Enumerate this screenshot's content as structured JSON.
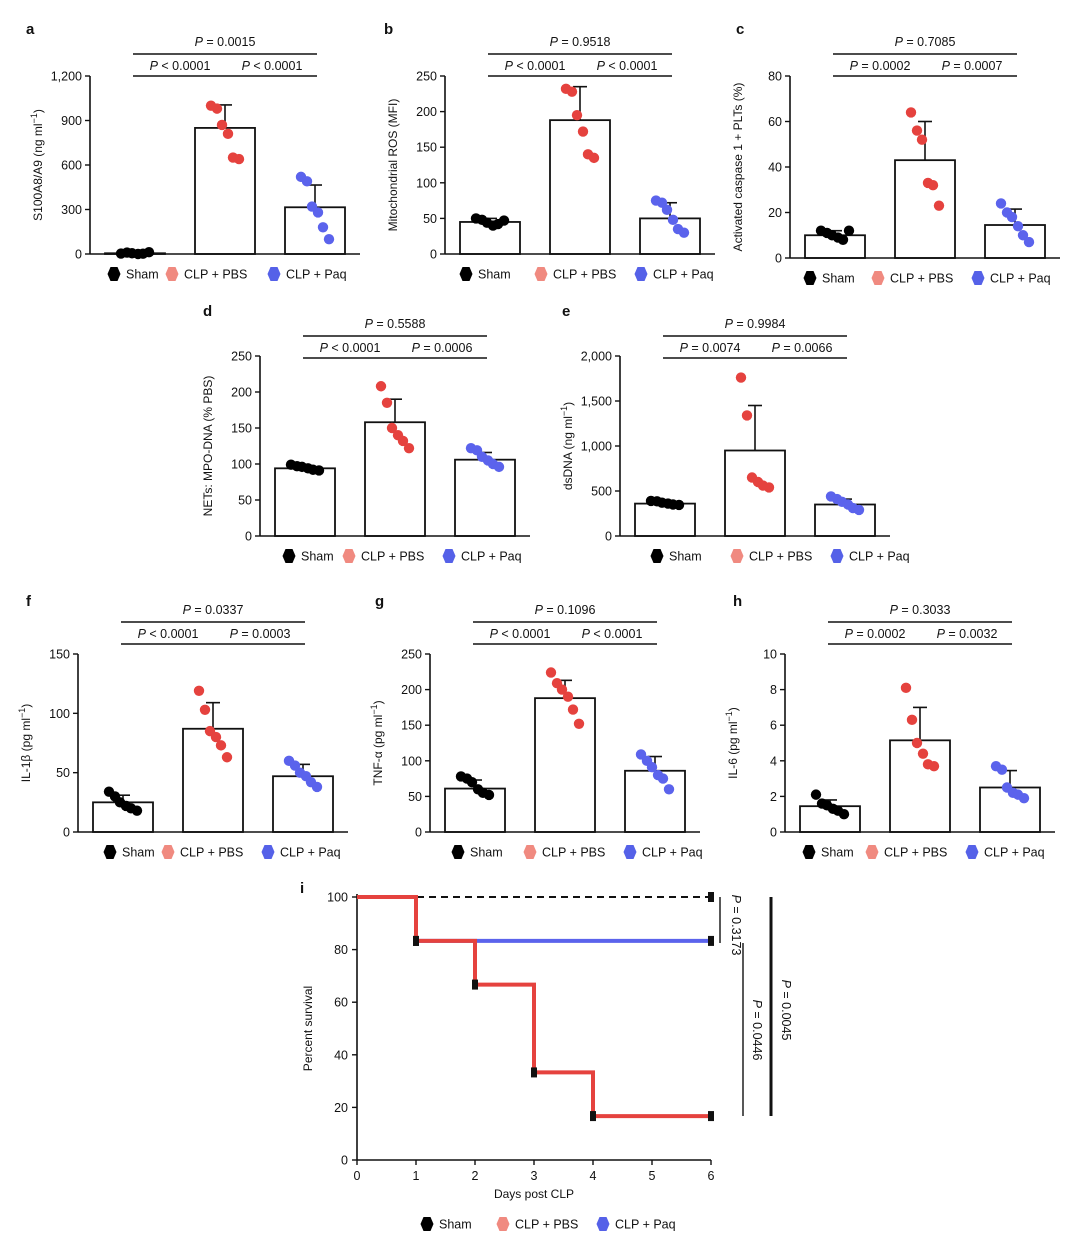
{
  "legend": {
    "labels": [
      "Sham",
      "CLP + PBS",
      "CLP + Paq"
    ],
    "marker_colors": [
      "#000000",
      "#f08a80",
      "#5561e8"
    ]
  },
  "colors": {
    "sham": "#000000",
    "pbs": "#e5423e",
    "paq": "#5b63ec",
    "line": "#111111"
  },
  "chart_data": [
    {
      "panel": "a",
      "type": "bar",
      "ylabel": "S100A8/A9 (ng ml⁻¹)",
      "categories": [
        "Sham",
        "CLP + PBS",
        "CLP + Paq"
      ],
      "ylim": [
        0,
        1200
      ],
      "yticks": [
        0,
        300,
        600,
        900,
        1200
      ],
      "ytick_labels": [
        "0",
        "300",
        "600",
        "900",
        "1,200"
      ],
      "means": [
        5,
        850,
        315
      ],
      "sd": [
        5,
        155,
        150
      ],
      "points": [
        [
          3,
          10,
          5,
          0,
          2,
          12
        ],
        [
          1000,
          980,
          870,
          810,
          650,
          640
        ],
        [
          520,
          490,
          320,
          280,
          180,
          100
        ]
      ],
      "pvalues": [
        {
          "from": 0,
          "to": 1,
          "p": "P < 0.0001"
        },
        {
          "from": 1,
          "to": 2,
          "p": "P < 0.0001"
        },
        {
          "from": 0,
          "to": 2,
          "p": "P = 0.0015"
        }
      ]
    },
    {
      "panel": "b",
      "type": "bar",
      "ylabel": "Mitochondrial ROS (MFI)",
      "categories": [
        "Sham",
        "CLP + PBS",
        "CLP + Paq"
      ],
      "ylim": [
        0,
        250
      ],
      "yticks": [
        0,
        50,
        100,
        150,
        200,
        250
      ],
      "ytick_labels": [
        "0",
        "50",
        "100",
        "150",
        "200",
        "250"
      ],
      "means": [
        45,
        188,
        50
      ],
      "sd": [
        5,
        47,
        22
      ],
      "points": [
        [
          50,
          48,
          44,
          40,
          42,
          47
        ],
        [
          232,
          228,
          195,
          172,
          140,
          135
        ],
        [
          75,
          72,
          62,
          48,
          35,
          30
        ]
      ],
      "pvalues": [
        {
          "from": 0,
          "to": 1,
          "p": "P < 0.0001"
        },
        {
          "from": 1,
          "to": 2,
          "p": "P < 0.0001"
        },
        {
          "from": 0,
          "to": 2,
          "p": "P = 0.9518"
        }
      ]
    },
    {
      "panel": "c",
      "type": "bar",
      "ylabel": "Activated caspase 1 + PLTs (%)",
      "categories": [
        "Sham",
        "CLP + PBS",
        "CLP + Paq"
      ],
      "ylim": [
        0,
        80
      ],
      "yticks": [
        0,
        20,
        40,
        60,
        80
      ],
      "ytick_labels": [
        "0",
        "20",
        "40",
        "60",
        "80"
      ],
      "means": [
        10,
        43,
        14.5
      ],
      "sd": [
        2,
        17,
        7
      ],
      "points": [
        [
          12,
          11,
          10,
          9,
          8,
          12
        ],
        [
          64,
          56,
          52,
          33,
          32,
          23
        ],
        [
          24,
          20,
          18,
          14,
          10,
          7
        ]
      ],
      "pvalues": [
        {
          "from": 0,
          "to": 1,
          "p": "P = 0.0002"
        },
        {
          "from": 1,
          "to": 2,
          "p": "P = 0.0007"
        },
        {
          "from": 0,
          "to": 2,
          "p": "P = 0.7085"
        }
      ]
    },
    {
      "panel": "d",
      "type": "bar",
      "ylabel": "NETs: MPO-DNA (% PBS)",
      "categories": [
        "Sham",
        "CLP + PBS",
        "CLP + Paq"
      ],
      "ylim": [
        0,
        250
      ],
      "yticks": [
        0,
        50,
        100,
        150,
        200,
        250
      ],
      "ytick_labels": [
        "0",
        "50",
        "100",
        "150",
        "200",
        "250"
      ],
      "means": [
        94,
        158,
        106
      ],
      "sd": [
        4,
        32,
        10
      ],
      "points": [
        [
          99,
          97,
          96,
          94,
          92,
          91
        ],
        [
          208,
          185,
          150,
          140,
          132,
          122
        ],
        [
          122,
          119,
          110,
          105,
          100,
          96
        ]
      ],
      "pvalues": [
        {
          "from": 0,
          "to": 1,
          "p": "P < 0.0001"
        },
        {
          "from": 1,
          "to": 2,
          "p": "P = 0.0006"
        },
        {
          "from": 0,
          "to": 2,
          "p": "P = 0.5588"
        }
      ]
    },
    {
      "panel": "e",
      "type": "bar",
      "ylabel": "dsDNA (ng ml⁻¹)",
      "categories": [
        "Sham",
        "CLP + PBS",
        "CLP + Paq"
      ],
      "ylim": [
        0,
        2000
      ],
      "yticks": [
        0,
        500,
        1000,
        1500,
        2000
      ],
      "ytick_labels": [
        "0",
        "500",
        "1,000",
        "1,500",
        "2,000"
      ],
      "means": [
        360,
        950,
        350
      ],
      "sd": [
        20,
        500,
        60
      ],
      "points": [
        [
          390,
          385,
          370,
          360,
          350,
          345
        ],
        [
          1760,
          1340,
          650,
          600,
          560,
          540
        ],
        [
          440,
          410,
          380,
          350,
          310,
          290
        ]
      ],
      "pvalues": [
        {
          "from": 0,
          "to": 1,
          "p": "P = 0.0074"
        },
        {
          "from": 1,
          "to": 2,
          "p": "P = 0.0066"
        },
        {
          "from": 0,
          "to": 2,
          "p": "P = 0.9984"
        }
      ]
    },
    {
      "panel": "f",
      "type": "bar",
      "ylabel": "IL-1β (pg ml⁻¹)",
      "categories": [
        "Sham",
        "CLP + PBS",
        "CLP + Paq"
      ],
      "ylim": [
        0,
        150
      ],
      "yticks": [
        0,
        50,
        100,
        150
      ],
      "ytick_labels": [
        "0",
        "50",
        "100",
        "150"
      ],
      "means": [
        25,
        87,
        47
      ],
      "sd": [
        6,
        22,
        10
      ],
      "points": [
        [
          34,
          30,
          25,
          22,
          20,
          18
        ],
        [
          119,
          103,
          85,
          80,
          73,
          63
        ],
        [
          60,
          56,
          50,
          47,
          42,
          38
        ]
      ],
      "pvalues": [
        {
          "from": 0,
          "to": 1,
          "p": "P < 0.0001"
        },
        {
          "from": 1,
          "to": 2,
          "p": "P = 0.0003"
        },
        {
          "from": 0,
          "to": 2,
          "p": "P = 0.0337"
        }
      ]
    },
    {
      "panel": "g",
      "type": "bar",
      "ylabel": "TNF-α (pg ml⁻¹)",
      "categories": [
        "Sham",
        "CLP + PBS",
        "CLP + Paq"
      ],
      "ylim": [
        0,
        250
      ],
      "yticks": [
        0,
        50,
        100,
        150,
        200,
        250
      ],
      "ytick_labels": [
        "0",
        "50",
        "100",
        "150",
        "200",
        "250"
      ],
      "means": [
        61,
        188,
        86
      ],
      "sd": [
        12,
        25,
        20
      ],
      "points": [
        [
          78,
          75,
          70,
          60,
          55,
          52
        ],
        [
          224,
          209,
          200,
          190,
          172,
          152
        ],
        [
          109,
          100,
          91,
          80,
          75,
          60
        ]
      ],
      "pvalues": [
        {
          "from": 0,
          "to": 1,
          "p": "P < 0.0001"
        },
        {
          "from": 1,
          "to": 2,
          "p": "P < 0.0001"
        },
        {
          "from": 0,
          "to": 2,
          "p": "P = 0.1096"
        }
      ]
    },
    {
      "panel": "h",
      "type": "bar",
      "ylabel": "IL-6 (pg ml⁻¹)",
      "categories": [
        "Sham",
        "CLP + PBS",
        "CLP + Paq"
      ],
      "ylim": [
        0,
        10
      ],
      "yticks": [
        0,
        2,
        4,
        6,
        8,
        10
      ],
      "ytick_labels": [
        "0",
        "2",
        "4",
        "6",
        "8",
        "10"
      ],
      "means": [
        1.45,
        5.15,
        2.5
      ],
      "sd": [
        0.35,
        1.85,
        0.95
      ],
      "points": [
        [
          2.1,
          1.6,
          1.5,
          1.3,
          1.2,
          1.0
        ],
        [
          8.1,
          6.3,
          5.0,
          4.4,
          3.8,
          3.7
        ],
        [
          3.7,
          3.5,
          2.5,
          2.2,
          2.1,
          1.9
        ]
      ],
      "pvalues": [
        {
          "from": 0,
          "to": 1,
          "p": "P = 0.0002"
        },
        {
          "from": 1,
          "to": 2,
          "p": "P = 0.0032"
        },
        {
          "from": 0,
          "to": 2,
          "p": "P = 0.3033"
        }
      ]
    },
    {
      "panel": "i",
      "type": "line",
      "subtype": "kaplan-meier",
      "xlabel": "Days post CLP",
      "ylabel": "Percent survival",
      "xlim": [
        0,
        6
      ],
      "ylim": [
        0,
        100
      ],
      "xticks": [
        0,
        1,
        2,
        3,
        4,
        5,
        6
      ],
      "yticks": [
        0,
        20,
        40,
        60,
        80,
        100
      ],
      "series": [
        {
          "name": "Sham",
          "style": "dashed",
          "steps": [
            [
              0,
              100
            ],
            [
              6,
              100
            ]
          ],
          "censored": [
            [
              6,
              100
            ]
          ]
        },
        {
          "name": "CLP + Paq",
          "style": "solid",
          "steps": [
            [
              0,
              100
            ],
            [
              1,
              100
            ],
            [
              1,
              83.3
            ],
            [
              6,
              83.3
            ]
          ],
          "censored": [
            [
              1,
              83.3
            ],
            [
              6,
              83.3
            ]
          ]
        },
        {
          "name": "CLP + PBS",
          "style": "solid",
          "steps": [
            [
              0,
              100
            ],
            [
              1,
              100
            ],
            [
              1,
              83.3
            ],
            [
              2,
              83.3
            ],
            [
              2,
              66.7
            ],
            [
              3,
              66.7
            ],
            [
              3,
              33.3
            ],
            [
              4,
              33.3
            ],
            [
              4,
              16.7
            ],
            [
              6,
              16.7
            ]
          ],
          "censored": [
            [
              1,
              83.3
            ],
            [
              2,
              66.7
            ],
            [
              3,
              33.3
            ],
            [
              4,
              16.7
            ],
            [
              6,
              16.7
            ]
          ]
        }
      ],
      "pvalues": [
        {
          "groups": "Sham vs CLP + Paq",
          "p": "P = 0.3173"
        },
        {
          "groups": "CLP + Paq vs CLP + PBS",
          "p": "P = 0.0446"
        },
        {
          "groups": "Sham vs CLP + PBS",
          "p": "P = 0.0045"
        }
      ]
    }
  ]
}
